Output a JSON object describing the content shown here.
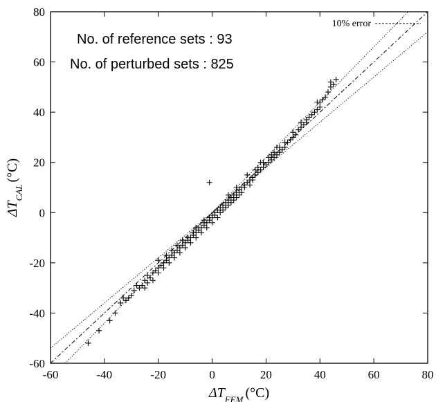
{
  "chart_data": {
    "type": "scatter",
    "xlim": [
      -60,
      80
    ],
    "ylim": [
      -60,
      80
    ],
    "xticks": [
      -60,
      -40,
      -20,
      0,
      20,
      40,
      60,
      80
    ],
    "yticks": [
      -60,
      -40,
      -20,
      0,
      20,
      40,
      60,
      80
    ],
    "xlabel": {
      "main": "ΔT",
      "sub": "FEM",
      "unit": "(°C)"
    },
    "ylabel": {
      "main": "ΔT",
      "sub": "CAL",
      "unit": "(°C)"
    },
    "annotations": [
      "No. of reference sets : 93",
      "No. of perturbed sets : 825"
    ],
    "legend": {
      "label": "10% error",
      "placement": "top-right"
    },
    "grid": false,
    "lines": [
      {
        "role": "identity",
        "slope": 1.0,
        "style": "dash"
      },
      {
        "role": "plus-10%",
        "slope": 1.1,
        "style": "dot"
      },
      {
        "role": "minus-10%",
        "slope": 0.9,
        "style": "dot"
      }
    ],
    "points": [
      [
        -46,
        -52
      ],
      [
        -42,
        -47
      ],
      [
        -38,
        -43
      ],
      [
        -36,
        -40
      ],
      [
        -34,
        -36
      ],
      [
        -33,
        -34
      ],
      [
        -32,
        -35
      ],
      [
        -30,
        -33
      ],
      [
        -29,
        -31
      ],
      [
        -27,
        -30
      ],
      [
        -26,
        -29
      ],
      [
        -25,
        -27
      ],
      [
        -24,
        -28
      ],
      [
        -24,
        -25
      ],
      [
        -23,
        -26
      ],
      [
        -22,
        -24
      ],
      [
        -21,
        -23
      ],
      [
        -20,
        -22
      ],
      [
        -20,
        -24
      ],
      [
        -19,
        -21
      ],
      [
        -18,
        -20
      ],
      [
        -18,
        -22
      ],
      [
        -17,
        -19
      ],
      [
        -16,
        -18
      ],
      [
        -16,
        -20
      ],
      [
        -15,
        -17
      ],
      [
        -14,
        -16
      ],
      [
        -14,
        -18
      ],
      [
        -13,
        -15
      ],
      [
        -12,
        -14
      ],
      [
        -12,
        -16
      ],
      [
        -11,
        -13
      ],
      [
        -10,
        -12
      ],
      [
        -10,
        -14
      ],
      [
        -9,
        -11
      ],
      [
        -9,
        -10
      ],
      [
        -8,
        -10
      ],
      [
        -8,
        -12
      ],
      [
        -7,
        -9
      ],
      [
        -7,
        -8
      ],
      [
        -6,
        -8
      ],
      [
        -6,
        -10
      ],
      [
        -5,
        -7
      ],
      [
        -5,
        -6
      ],
      [
        -4,
        -6
      ],
      [
        -4,
        -8
      ],
      [
        -3,
        -5
      ],
      [
        -3,
        -4
      ],
      [
        -2,
        -4
      ],
      [
        -2,
        -6
      ],
      [
        -1,
        -3
      ],
      [
        -1,
        -2
      ],
      [
        0,
        -2
      ],
      [
        0,
        -1
      ],
      [
        0,
        -4
      ],
      [
        1,
        0
      ],
      [
        1,
        -1
      ],
      [
        2,
        1
      ],
      [
        2,
        -2
      ],
      [
        3,
        2
      ],
      [
        3,
        0
      ],
      [
        4,
        3
      ],
      [
        4,
        1
      ],
      [
        5,
        4
      ],
      [
        5,
        2
      ],
      [
        6,
        5
      ],
      [
        6,
        3
      ],
      [
        7,
        6
      ],
      [
        7,
        4
      ],
      [
        8,
        7
      ],
      [
        8,
        5
      ],
      [
        9,
        8
      ],
      [
        9,
        6
      ],
      [
        10,
        9
      ],
      [
        10,
        7
      ],
      [
        11,
        10
      ],
      [
        11,
        8
      ],
      [
        12,
        11
      ],
      [
        12,
        10
      ],
      [
        13,
        12
      ],
      [
        14,
        13
      ],
      [
        14,
        11
      ],
      [
        15,
        14
      ],
      [
        15,
        13
      ],
      [
        16,
        15
      ],
      [
        17,
        16
      ],
      [
        17,
        18
      ],
      [
        18,
        17
      ],
      [
        19,
        18
      ],
      [
        19,
        20
      ],
      [
        20,
        19
      ],
      [
        21,
        20
      ],
      [
        21,
        22
      ],
      [
        22,
        21
      ],
      [
        23,
        22
      ],
      [
        23,
        24
      ],
      [
        24,
        23
      ],
      [
        25,
        24
      ],
      [
        25,
        26
      ],
      [
        26,
        25
      ],
      [
        27,
        26
      ],
      [
        28,
        28
      ],
      [
        29,
        29
      ],
      [
        30,
        30
      ],
      [
        31,
        31
      ],
      [
        32,
        33
      ],
      [
        33,
        34
      ],
      [
        34,
        35
      ],
      [
        35,
        36
      ],
      [
        36,
        38
      ],
      [
        37,
        39
      ],
      [
        38,
        40
      ],
      [
        39,
        41
      ],
      [
        40,
        42
      ],
      [
        40,
        44
      ],
      [
        41,
        45
      ],
      [
        42,
        46
      ],
      [
        43,
        48
      ],
      [
        44,
        50
      ],
      [
        45,
        51
      ],
      [
        46,
        53
      ],
      [
        44,
        52
      ],
      [
        -28,
        -29
      ],
      [
        -22,
        -27
      ],
      [
        -17,
        -17
      ],
      [
        -11,
        -11
      ],
      [
        -6,
        -6
      ],
      [
        13,
        15
      ],
      [
        18,
        20
      ],
      [
        24,
        26
      ],
      [
        30,
        32
      ],
      [
        35,
        37
      ],
      [
        -20,
        -19
      ],
      [
        -15,
        -15
      ],
      [
        -31,
        -34
      ],
      [
        -25,
        -30
      ],
      [
        -3,
        -3
      ],
      [
        6,
        7
      ],
      [
        27,
        28
      ],
      [
        39,
        44
      ],
      [
        -13,
        -13
      ],
      [
        9,
        10
      ],
      [
        16,
        17
      ],
      [
        22,
        23
      ],
      [
        33,
        36
      ],
      [
        -1,
        12
      ]
    ]
  }
}
